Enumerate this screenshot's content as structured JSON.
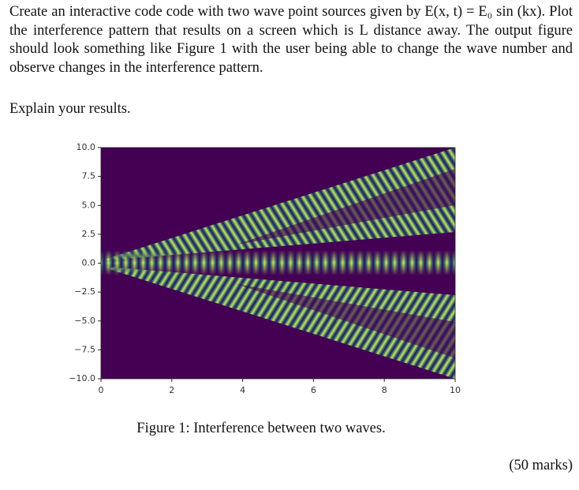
{
  "question": {
    "text": "Create an interactive code code with two wave point sources given by E(x, t) = E₀ sin (kx). Plot the interference pattern that results on a screen which is L distance away. The output figure should look something like Figure 1 with the user being able to change the wave number and observe changes in the interference pattern.",
    "instruction": "Explain your results."
  },
  "figure": {
    "xlim": [
      0,
      10
    ],
    "ylim": [
      -10,
      10
    ],
    "xticks": [
      0,
      2,
      4,
      6,
      8,
      10
    ],
    "yticks": [
      {
        "value": 10,
        "label": "10.0"
      },
      {
        "value": 7.5,
        "label": "7.5"
      },
      {
        "value": 5,
        "label": "5.0"
      },
      {
        "value": 2.5,
        "label": "2.5"
      },
      {
        "value": 0,
        "label": "0.0"
      },
      {
        "value": -2.5,
        "label": "−2.5"
      },
      {
        "value": -5,
        "label": "−5.0"
      },
      {
        "value": -7.5,
        "label": "−7.5"
      },
      {
        "value": -10,
        "label": "−10.0"
      }
    ],
    "caption": "Figure 1: Interference between two waves."
  },
  "marks": "(50 marks)"
}
